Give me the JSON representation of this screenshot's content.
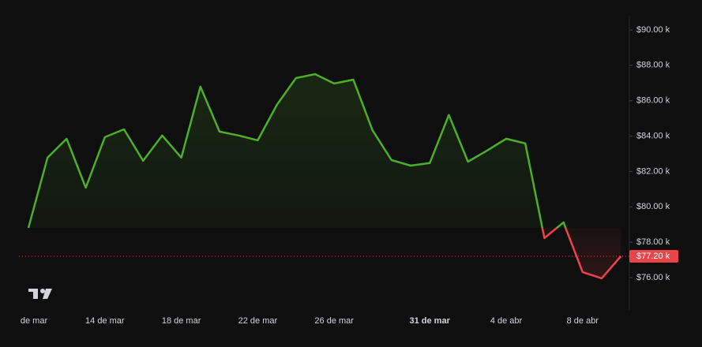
{
  "chart_data": {
    "type": "baseline",
    "categories": [
      "de mar",
      null,
      null,
      null,
      "14 de mar",
      null,
      null,
      null,
      "18 de mar",
      null,
      null,
      null,
      "22 de mar",
      null,
      null,
      null,
      "26 de mar",
      null,
      null,
      null,
      null,
      "31 de mar",
      null,
      null,
      null,
      "4 de abr",
      null,
      null,
      null,
      "8 de abr",
      null,
      null
    ],
    "values": [
      78.81,
      82.78,
      83.85,
      81.08,
      83.94,
      84.38,
      82.6,
      84.03,
      82.78,
      86.79,
      84.25,
      84.03,
      83.76,
      85.76,
      87.28,
      87.5,
      86.97,
      87.19,
      84.34,
      82.64,
      82.33,
      82.47,
      85.19,
      82.55,
      83.18,
      83.85,
      83.58,
      78.23,
      79.12,
      76.31,
      75.96,
      77.2
    ],
    "baseline": 78.81,
    "up_color": "#4caf28",
    "down_color": "#e8444a",
    "ylim": [
      74.17,
      90.8
    ],
    "yticks": [
      {
        "value": 76,
        "label": "$76.00 k"
      },
      {
        "value": 78,
        "label": "$78.00 k"
      },
      {
        "value": 80,
        "label": "$80.00 k"
      },
      {
        "value": 82,
        "label": "$82.00 k"
      },
      {
        "value": 84,
        "label": "$84.00 k"
      },
      {
        "value": 86,
        "label": "$86.00 k"
      },
      {
        "value": 88,
        "label": "$88.00 k"
      },
      {
        "value": 90,
        "label": "$90.00 k"
      }
    ],
    "last_price": {
      "value": 77.2,
      "label": "$77.20 k"
    }
  }
}
